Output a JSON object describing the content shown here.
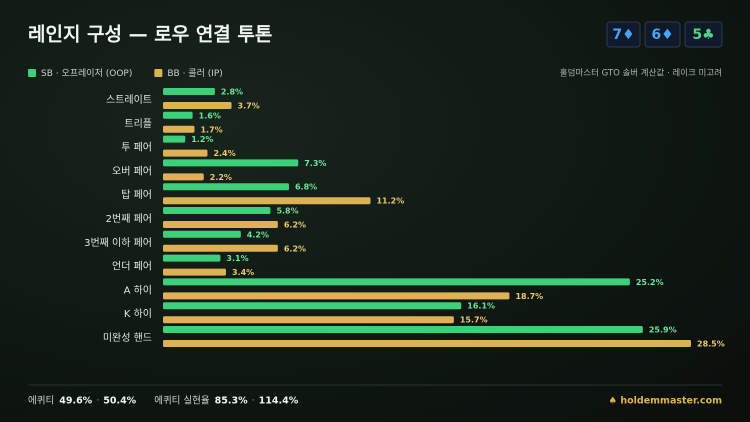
{
  "header": {
    "cards": [
      {
        "label": "7♦",
        "color": "#4aa3ff"
      },
      {
        "label": "6♦",
        "color": "#4aa3ff"
      },
      {
        "label": "5♣",
        "color": "#4fd483"
      }
    ]
  },
  "chart_data": {
    "type": "hbar",
    "title": "레인지 구성 — 로우 연결 투톤",
    "note": "홀덤마스터 GTO 솔버 계산값 · 레이크 미고려",
    "categories": [
      "스트레이트",
      "트리플",
      "투 페어",
      "오버 페어",
      "탑 페어",
      "2번째 페어",
      "3번째 이하 페어",
      "언더 페어",
      "A 하이",
      "K 하이",
      "미완성 핸드"
    ],
    "series": [
      {
        "name": "SB · 오프레이저 (OOP)",
        "color": "#3ecf7a",
        "label_color": "#6be39a",
        "values": [
          2.8,
          1.6,
          1.2,
          7.3,
          6.8,
          5.8,
          4.2,
          3.1,
          25.2,
          16.1,
          25.9
        ],
        "value_labels": [
          "2.8%",
          "1.6%",
          "1.2%",
          "7.3%",
          "6.8%",
          "5.8%",
          "4.2%",
          "3.1%",
          "25.2%",
          "16.1%",
          "25.9%"
        ]
      },
      {
        "name": "BB · 콜러 (IP)",
        "color": "#ddb154",
        "label_color": "#ebc66c",
        "values": [
          3.7,
          1.7,
          2.4,
          2.2,
          11.2,
          6.2,
          6.2,
          3.4,
          18.7,
          15.7,
          28.5
        ],
        "value_labels": [
          "3.7%",
          "1.7%",
          "2.4%",
          "2.2%",
          "11.2%",
          "6.2%",
          "6.2%",
          "3.4%",
          "18.7%",
          "15.7%",
          "28.5%"
        ]
      }
    ]
  },
  "footer": {
    "separator": "·",
    "equity": {
      "label": "에퀴티",
      "values": [
        "49.6%",
        "50.4%"
      ]
    },
    "realization": {
      "label": "에퀴티 실현율",
      "values": [
        "85.3%",
        "114.4%"
      ]
    },
    "brand": "♠ holdemmaster.com"
  }
}
